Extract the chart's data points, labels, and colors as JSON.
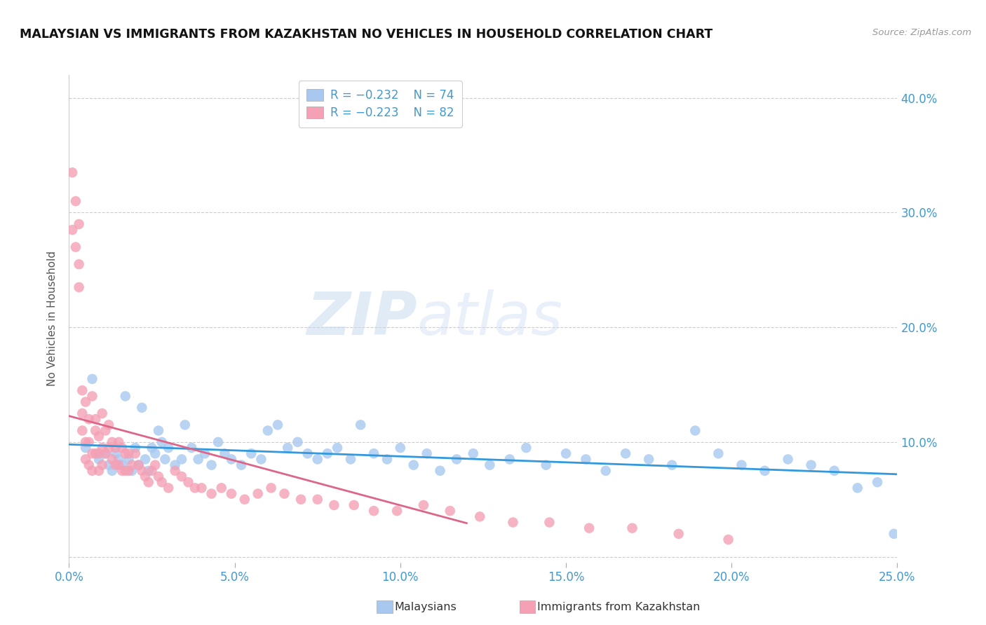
{
  "title": "MALAYSIAN VS IMMIGRANTS FROM KAZAKHSTAN NO VEHICLES IN HOUSEHOLD CORRELATION CHART",
  "source": "Source: ZipAtlas.com",
  "ylabel": "No Vehicles in Household",
  "xlim": [
    0.0,
    0.25
  ],
  "ylim": [
    -0.005,
    0.42
  ],
  "xticks": [
    0.0,
    0.05,
    0.1,
    0.15,
    0.2,
    0.25
  ],
  "yticks_right": [
    0.1,
    0.2,
    0.3,
    0.4
  ],
  "malaysian_color": "#a8c8f0",
  "kazakhstan_color": "#f4a0b5",
  "trendline_blue": "#3399dd",
  "trendline_pink": "#dd6688",
  "legend_R_blue": "R = −0.232",
  "legend_N_blue": "N = 74",
  "legend_R_pink": "R = −0.223",
  "legend_N_pink": "N = 82",
  "legend_label_blue": "Malaysians",
  "legend_label_pink": "Immigrants from Kazakhstan",
  "watermark_zip": "ZIP",
  "watermark_atlas": "atlas",
  "axis_color": "#4499cc",
  "grid_color": "#cccccc",
  "title_color": "#111111",
  "source_color": "#999999",
  "malaysian_x": [
    0.005,
    0.007,
    0.009,
    0.011,
    0.012,
    0.013,
    0.014,
    0.015,
    0.016,
    0.017,
    0.018,
    0.019,
    0.02,
    0.021,
    0.022,
    0.023,
    0.024,
    0.025,
    0.026,
    0.027,
    0.028,
    0.029,
    0.03,
    0.032,
    0.034,
    0.035,
    0.037,
    0.039,
    0.041,
    0.043,
    0.045,
    0.047,
    0.049,
    0.052,
    0.055,
    0.058,
    0.06,
    0.063,
    0.066,
    0.069,
    0.072,
    0.075,
    0.078,
    0.081,
    0.085,
    0.088,
    0.092,
    0.096,
    0.1,
    0.104,
    0.108,
    0.112,
    0.117,
    0.122,
    0.127,
    0.133,
    0.138,
    0.144,
    0.15,
    0.156,
    0.162,
    0.168,
    0.175,
    0.182,
    0.189,
    0.196,
    0.203,
    0.21,
    0.217,
    0.224,
    0.231,
    0.238,
    0.244,
    0.249
  ],
  "malaysian_y": [
    0.095,
    0.155,
    0.085,
    0.09,
    0.08,
    0.075,
    0.09,
    0.085,
    0.08,
    0.14,
    0.085,
    0.075,
    0.095,
    0.08,
    0.13,
    0.085,
    0.075,
    0.095,
    0.09,
    0.11,
    0.1,
    0.085,
    0.095,
    0.08,
    0.085,
    0.115,
    0.095,
    0.085,
    0.09,
    0.08,
    0.1,
    0.09,
    0.085,
    0.08,
    0.09,
    0.085,
    0.11,
    0.115,
    0.095,
    0.1,
    0.09,
    0.085,
    0.09,
    0.095,
    0.085,
    0.115,
    0.09,
    0.085,
    0.095,
    0.08,
    0.09,
    0.075,
    0.085,
    0.09,
    0.08,
    0.085,
    0.095,
    0.08,
    0.09,
    0.085,
    0.075,
    0.09,
    0.085,
    0.08,
    0.11,
    0.09,
    0.08,
    0.075,
    0.085,
    0.08,
    0.075,
    0.06,
    0.065,
    0.02
  ],
  "kazakhstan_x": [
    0.001,
    0.001,
    0.002,
    0.002,
    0.003,
    0.003,
    0.003,
    0.004,
    0.004,
    0.004,
    0.005,
    0.005,
    0.005,
    0.006,
    0.006,
    0.006,
    0.007,
    0.007,
    0.007,
    0.008,
    0.008,
    0.008,
    0.009,
    0.009,
    0.009,
    0.01,
    0.01,
    0.01,
    0.011,
    0.011,
    0.012,
    0.012,
    0.013,
    0.013,
    0.014,
    0.014,
    0.015,
    0.015,
    0.016,
    0.016,
    0.017,
    0.017,
    0.018,
    0.018,
    0.019,
    0.02,
    0.021,
    0.022,
    0.023,
    0.024,
    0.025,
    0.026,
    0.027,
    0.028,
    0.03,
    0.032,
    0.034,
    0.036,
    0.038,
    0.04,
    0.043,
    0.046,
    0.049,
    0.053,
    0.057,
    0.061,
    0.065,
    0.07,
    0.075,
    0.08,
    0.086,
    0.092,
    0.099,
    0.107,
    0.115,
    0.124,
    0.134,
    0.145,
    0.157,
    0.17,
    0.184,
    0.199
  ],
  "kazakhstan_y": [
    0.335,
    0.285,
    0.31,
    0.27,
    0.29,
    0.255,
    0.235,
    0.145,
    0.125,
    0.11,
    0.135,
    0.1,
    0.085,
    0.12,
    0.1,
    0.08,
    0.14,
    0.09,
    0.075,
    0.12,
    0.11,
    0.09,
    0.105,
    0.09,
    0.075,
    0.125,
    0.095,
    0.08,
    0.11,
    0.09,
    0.115,
    0.095,
    0.1,
    0.085,
    0.095,
    0.08,
    0.1,
    0.08,
    0.095,
    0.075,
    0.09,
    0.075,
    0.09,
    0.075,
    0.08,
    0.09,
    0.08,
    0.075,
    0.07,
    0.065,
    0.075,
    0.08,
    0.07,
    0.065,
    0.06,
    0.075,
    0.07,
    0.065,
    0.06,
    0.06,
    0.055,
    0.06,
    0.055,
    0.05,
    0.055,
    0.06,
    0.055,
    0.05,
    0.05,
    0.045,
    0.045,
    0.04,
    0.04,
    0.045,
    0.04,
    0.035,
    0.03,
    0.03,
    0.025,
    0.025,
    0.02,
    0.015
  ]
}
